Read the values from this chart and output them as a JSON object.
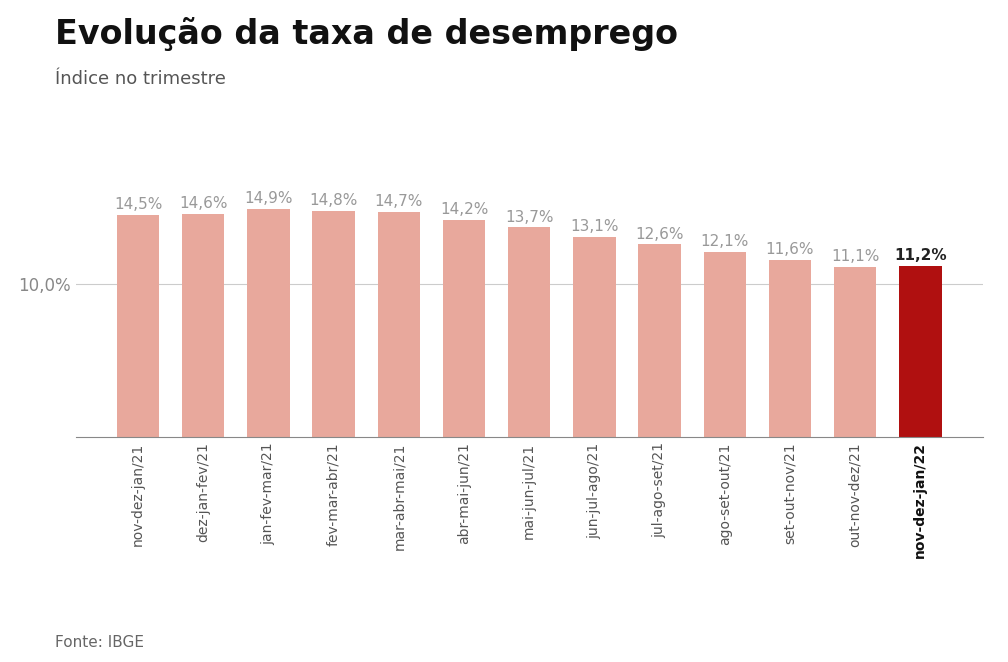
{
  "title": "Evolução da taxa de desemprego",
  "subtitle": "Índice no trimestre",
  "footnote": "Fonte: IBGE",
  "categories": [
    "nov-dez-jan/21",
    "dez-jan-fev/21",
    "jan-fev-mar/21",
    "fev-mar-abr/21",
    "mar-abr-mai/21",
    "abr-mai-jun/21",
    "mai-jun-jul/21",
    "jun-jul-ago/21",
    "jul-ago-set/21",
    "ago-set-out/21",
    "set-out-nov/21",
    "out-nov-dez/21",
    "nov-dez-jan/22"
  ],
  "values": [
    14.5,
    14.6,
    14.9,
    14.8,
    14.7,
    14.2,
    13.7,
    13.1,
    12.6,
    12.1,
    11.6,
    11.1,
    11.2
  ],
  "bar_colors": [
    "#e8a89c",
    "#e8a89c",
    "#e8a89c",
    "#e8a89c",
    "#e8a89c",
    "#e8a89c",
    "#e8a89c",
    "#e8a89c",
    "#e8a89c",
    "#e8a89c",
    "#e8a89c",
    "#e8a89c",
    "#b01010"
  ],
  "label_colors": [
    "#999999",
    "#999999",
    "#999999",
    "#999999",
    "#999999",
    "#999999",
    "#999999",
    "#999999",
    "#999999",
    "#999999",
    "#999999",
    "#999999",
    "#222222"
  ],
  "label_fontweights": [
    "normal",
    "normal",
    "normal",
    "normal",
    "normal",
    "normal",
    "normal",
    "normal",
    "normal",
    "normal",
    "normal",
    "normal",
    "bold"
  ],
  "xtick_fontweights": [
    "normal",
    "normal",
    "normal",
    "normal",
    "normal",
    "normal",
    "normal",
    "normal",
    "normal",
    "normal",
    "normal",
    "normal",
    "bold"
  ],
  "ylim": [
    0,
    21.0
  ],
  "ytick_value": 10.0,
  "background_color": "#ffffff",
  "title_fontsize": 24,
  "subtitle_fontsize": 13,
  "footnote_fontsize": 11,
  "label_fontsize": 11,
  "xtick_fontsize": 10,
  "ytick_fontsize": 12
}
